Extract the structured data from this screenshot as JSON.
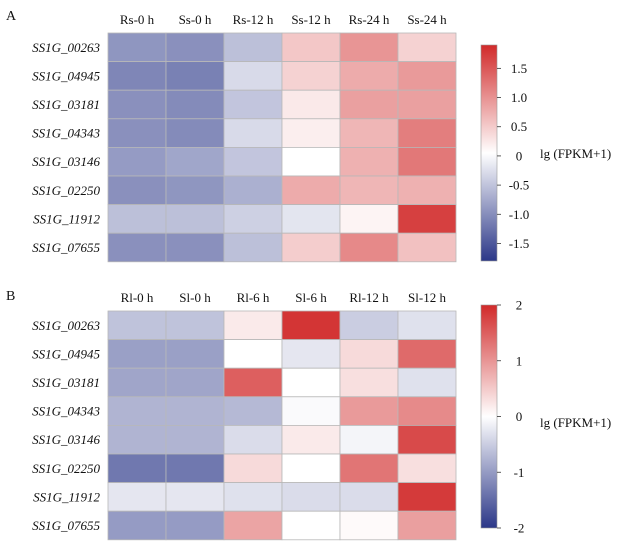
{
  "chart_data": [
    {
      "type": "heatmap",
      "panel_label": "A",
      "columns": [
        "Rs-0 h",
        "Ss-0 h",
        "Rs-12 h",
        "Ss-12 h",
        "Rs-24 h",
        "Ss-24 h"
      ],
      "rows": [
        "SS1G_00263",
        "SS1G_04945",
        "SS1G_03181",
        "SS1G_04343",
        "SS1G_03146",
        "SS1G_02250",
        "SS1G_11912",
        "SS1G_07655"
      ],
      "values": [
        [
          -1.0,
          -1.05,
          -0.6,
          0.5,
          0.95,
          0.4
        ],
        [
          -1.15,
          -1.2,
          -0.35,
          0.4,
          0.75,
          0.9
        ],
        [
          -1.05,
          -1.1,
          -0.55,
          0.2,
          0.85,
          0.85
        ],
        [
          -1.05,
          -1.1,
          -0.35,
          0.15,
          0.65,
          1.15
        ],
        [
          -0.95,
          -0.85,
          -0.55,
          0.0,
          0.7,
          1.2
        ],
        [
          -1.05,
          -1.0,
          -0.75,
          0.75,
          0.65,
          0.7
        ],
        [
          -0.6,
          -0.6,
          -0.45,
          -0.25,
          0.1,
          1.7
        ],
        [
          -1.05,
          -1.05,
          -0.6,
          0.45,
          1.05,
          0.55
        ]
      ],
      "scale": {
        "min": -1.8,
        "max": 1.9,
        "ticks": [
          1.5,
          1.0,
          0.5,
          0,
          -0.5,
          -1.0,
          -1.5
        ],
        "tick_labels": [
          "1.5",
          "1.0",
          "0.5",
          "0",
          "-0.5",
          "-1.0",
          "-1.5"
        ]
      },
      "colorbar_label": "lg (FPKM+1)",
      "colors": {
        "low": "#2b3788",
        "mid": "#ffffff",
        "high": "#d12a2a"
      }
    },
    {
      "type": "heatmap",
      "panel_label": "B",
      "columns": [
        "Rl-0 h",
        "Sl-0 h",
        "Rl-6 h",
        "Sl-6 h",
        "Rl-12 h",
        "Sl-12 h"
      ],
      "rows": [
        "SS1G_00263",
        "SS1G_04945",
        "SS1G_03181",
        "SS1G_04343",
        "SS1G_03146",
        "SS1G_02250",
        "SS1G_11912",
        "SS1G_07655"
      ],
      "values": [
        [
          -0.6,
          -0.6,
          0.2,
          1.9,
          -0.5,
          -0.3
        ],
        [
          -0.95,
          -0.95,
          0.0,
          -0.25,
          0.35,
          1.4
        ],
        [
          -0.9,
          -0.9,
          1.5,
          0.0,
          0.3,
          -0.3
        ],
        [
          -0.75,
          -0.75,
          -0.7,
          -0.05,
          0.95,
          1.1
        ],
        [
          -0.75,
          -0.75,
          -0.35,
          0.2,
          -0.1,
          1.7
        ],
        [
          -1.35,
          -1.35,
          0.35,
          0.0,
          1.3,
          0.3
        ],
        [
          -0.25,
          -0.25,
          -0.3,
          -0.35,
          -0.35,
          1.85
        ],
        [
          -1.0,
          -1.0,
          0.85,
          0.0,
          0.05,
          0.9
        ]
      ],
      "scale": {
        "min": -2.0,
        "max": 2.0,
        "ticks": [
          2,
          1,
          0,
          -1,
          -2
        ],
        "tick_labels": [
          "2",
          "1",
          "0",
          "-1",
          "-2"
        ]
      },
      "colorbar_label": "lg (FPKM+1)",
      "colors": {
        "low": "#2b3788",
        "mid": "#ffffff",
        "high": "#d12a2a"
      }
    }
  ]
}
